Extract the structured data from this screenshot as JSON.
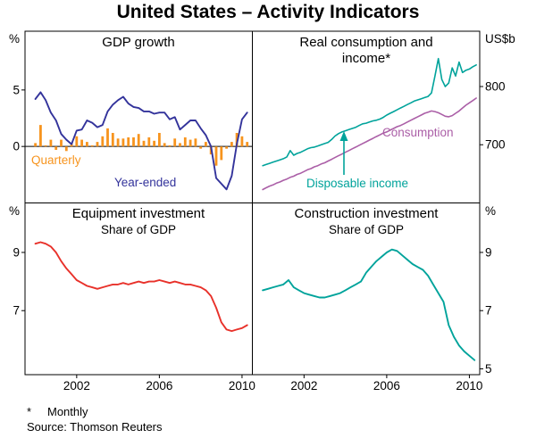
{
  "title": "United States – Activity Indicators",
  "footnote": {
    "marker": "*",
    "text": "Monthly"
  },
  "source": "Source: Thomson Reuters",
  "colors": {
    "blue": "#33339b",
    "orange": "#f7941e",
    "teal": "#00a39b",
    "purple": "#ab5fa7",
    "red": "#e8312a",
    "axis": "#000000"
  },
  "chart_data": [
    {
      "panel": "top-left",
      "type": "bar+line",
      "title": "GDP growth",
      "subtitle": "",
      "unit": "%",
      "x_domain": [
        1999.5,
        2010.5
      ],
      "y_domain": [
        -5,
        10.2
      ],
      "y_ticks": [
        5,
        0
      ],
      "x_ticks": [
        2002,
        2006,
        2010
      ],
      "zero_line": true,
      "series": [
        {
          "name": "Quarterly",
          "kind": "bar",
          "color": "#f7941e",
          "x_start": 2000.0,
          "x_step": 0.25,
          "values": [
            0.3,
            1.9,
            0.1,
            0.6,
            -0.3,
            0.6,
            -0.4,
            0.3,
            0.9,
            0.6,
            0.4,
            0.1,
            0.4,
            0.9,
            1.6,
            1.2,
            0.7,
            0.7,
            0.8,
            0.8,
            1.1,
            0.5,
            0.8,
            0.5,
            1.2,
            0.3,
            0.1,
            0.7,
            0.3,
            0.8,
            0.6,
            0.7,
            -0.2,
            0.4,
            -0.7,
            -1.7,
            -1.2,
            -0.2,
            0.4,
            1.2,
            0.9,
            0.4
          ]
        },
        {
          "name": "Year-ended",
          "kind": "line",
          "color": "#33339b",
          "width": 1.9,
          "x_start": 2000.0,
          "x_step": 0.25,
          "values": [
            4.2,
            4.8,
            4.1,
            3.0,
            2.3,
            1.1,
            0.6,
            0.2,
            1.4,
            1.5,
            2.3,
            2.1,
            1.7,
            1.9,
            3.1,
            3.7,
            4.1,
            4.4,
            3.8,
            3.5,
            3.4,
            3.1,
            3.1,
            2.9,
            3.0,
            3.0,
            2.4,
            2.6,
            1.5,
            1.9,
            2.3,
            2.3,
            1.6,
            1.0,
            0.0,
            -2.8,
            -3.3,
            -3.8,
            -2.6,
            0.2,
            2.4,
            3.0
          ]
        }
      ]
    },
    {
      "panel": "top-right",
      "type": "line",
      "title": "Real consumption and income*",
      "subtitle": "",
      "unit": "US$b",
      "x_domain": [
        1999.5,
        2010.5
      ],
      "y_domain": [
        600,
        895
      ],
      "y_ticks": [
        800,
        700
      ],
      "x_ticks": [
        2002,
        2006,
        2010
      ],
      "zero_line": false,
      "series": [
        {
          "name": "Disposable income",
          "kind": "line",
          "color": "#00a39b",
          "width": 1.6,
          "x_start": 2000.0,
          "x_step": 0.16667,
          "values": [
            664,
            666,
            668,
            670,
            672,
            674,
            676,
            679,
            690,
            682,
            685,
            687,
            690,
            693,
            695,
            696,
            698,
            700,
            702,
            704,
            709,
            715,
            719,
            722,
            724,
            726,
            728,
            730,
            733,
            736,
            737,
            739,
            741,
            742,
            744,
            747,
            751,
            754,
            757,
            760,
            763,
            766,
            769,
            772,
            775,
            777,
            779,
            781,
            783,
            789,
            818,
            848,
            812,
            800,
            806,
            832,
            818,
            842,
            824,
            828,
            830,
            834,
            837
          ]
        },
        {
          "name": "Consumption",
          "kind": "line",
          "color": "#ab5fa7",
          "width": 1.6,
          "x_start": 2000.0,
          "x_step": 0.16667,
          "values": [
            623,
            626,
            629,
            631,
            634,
            636,
            639,
            641,
            644,
            646,
            649,
            651,
            654,
            657,
            659,
            662,
            664,
            667,
            669,
            672,
            675,
            678,
            681,
            684,
            687,
            690,
            693,
            696,
            699,
            702,
            705,
            708,
            711,
            714,
            717,
            720,
            722,
            725,
            728,
            731,
            733,
            736,
            739,
            742,
            745,
            748,
            751,
            754,
            756,
            758,
            757,
            755,
            752,
            749,
            748,
            750,
            754,
            758,
            763,
            768,
            772,
            776,
            780
          ]
        }
      ]
    },
    {
      "panel": "bottom-left",
      "type": "line",
      "title": "Equipment investment",
      "subtitle": "Share of GDP",
      "unit": "%",
      "x_domain": [
        1999.5,
        2010.5
      ],
      "y_domain": [
        4.8,
        10.7
      ],
      "y_ticks": [
        9,
        7
      ],
      "x_ticks": [
        2002,
        2006,
        2010
      ],
      "zero_line": false,
      "series": [
        {
          "name": "Equipment investment",
          "kind": "line",
          "color": "#e8312a",
          "width": 1.9,
          "x_start": 2000.0,
          "x_step": 0.25,
          "values": [
            9.3,
            9.35,
            9.3,
            9.2,
            9.0,
            8.7,
            8.45,
            8.25,
            8.05,
            7.95,
            7.85,
            7.8,
            7.75,
            7.8,
            7.85,
            7.9,
            7.9,
            7.95,
            7.9,
            7.95,
            8.0,
            7.95,
            8.0,
            8.0,
            8.05,
            8.0,
            7.95,
            8.0,
            7.95,
            7.9,
            7.9,
            7.85,
            7.8,
            7.7,
            7.5,
            7.1,
            6.6,
            6.35,
            6.3,
            6.35,
            6.4,
            6.5
          ]
        }
      ]
    },
    {
      "panel": "bottom-right",
      "type": "line",
      "title": "Construction investment",
      "subtitle": "Share of GDP",
      "unit": "%",
      "x_domain": [
        1999.5,
        2010.5
      ],
      "y_domain": [
        4.8,
        10.7
      ],
      "y_ticks": [
        9,
        7,
        5
      ],
      "x_ticks": [
        2002,
        2006,
        2010
      ],
      "zero_line": false,
      "series": [
        {
          "name": "Construction investment",
          "kind": "line",
          "color": "#00a39b",
          "width": 1.9,
          "x_start": 2000.0,
          "x_step": 0.25,
          "values": [
            7.7,
            7.75,
            7.8,
            7.85,
            7.9,
            8.05,
            7.8,
            7.7,
            7.6,
            7.55,
            7.5,
            7.45,
            7.45,
            7.5,
            7.55,
            7.6,
            7.7,
            7.8,
            7.9,
            8.0,
            8.3,
            8.5,
            8.7,
            8.85,
            9.0,
            9.1,
            9.05,
            8.9,
            8.75,
            8.6,
            8.5,
            8.4,
            8.2,
            7.9,
            7.6,
            7.3,
            6.5,
            6.1,
            5.8,
            5.6,
            5.45,
            5.3
          ]
        }
      ]
    }
  ]
}
